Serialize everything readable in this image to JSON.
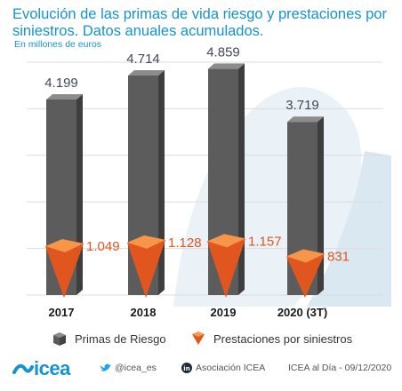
{
  "title": "Evolución de las primas de vida riesgo y prestaciones por siniestros. Datos anuales acumulados.",
  "subtitle": "En millones de euros",
  "chart_data": {
    "type": "bar",
    "categories": [
      "2017",
      "2018",
      "2019",
      "2020 (3T)"
    ],
    "series": [
      {
        "name": "Primas de Riesgo",
        "values": [
          4199,
          4714,
          4859,
          3719
        ],
        "labels": [
          "4.199",
          "4.714",
          "4.859",
          "3.719"
        ],
        "color": "#666666"
      },
      {
        "name": "Prestaciones por siniestros",
        "values": [
          1049,
          1128,
          1157,
          831
        ],
        "labels": [
          "1.049",
          "1.128",
          "1.157",
          "831"
        ],
        "color": "#f07a30"
      }
    ],
    "ylim": [
      0,
      5000
    ],
    "grid": true,
    "legend": "bottom"
  },
  "legend": {
    "primas": "Primas de Riesgo",
    "prestaciones": "Prestaciones por siniestros"
  },
  "footer": {
    "brand": "icea",
    "twitter": "@icea_es",
    "linkedin": "Asociación ICEA",
    "source": "ICEA al Día - 09/12/2020"
  },
  "colors": {
    "accent": "#1593cf",
    "bar": "#666666",
    "orange": "#f07a30",
    "value_orange": "#e0561e",
    "value_dark": "#404858"
  }
}
